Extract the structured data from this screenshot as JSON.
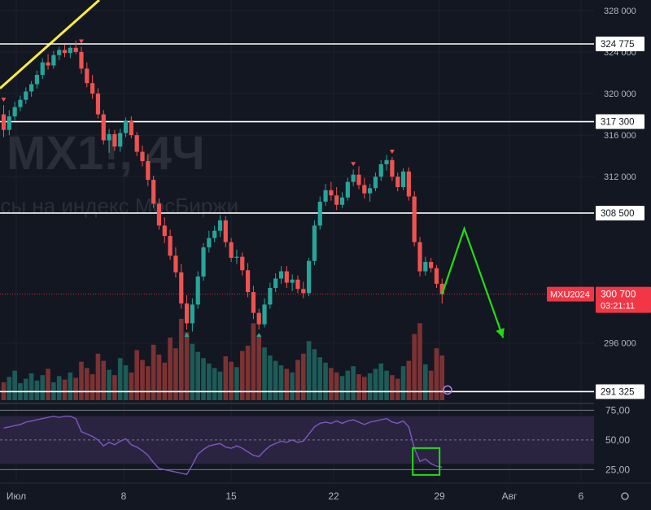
{
  "colors": {
    "background": "#131722",
    "grid": "#1e222d",
    "up": "#26a69a",
    "down": "#ef5350",
    "vol_up": "#1c5b58",
    "vol_down": "#7c3232",
    "level_line": "#ffffff",
    "trend_line": "#ffeb3b",
    "forecast": "#22dd11",
    "rsi": "#7e57c2",
    "rsi_band": "#2a2440",
    "current_tag": "#f23645",
    "axis_text": "#b2b5be",
    "watermark": "#2a2e39"
  },
  "watermark": {
    "symbol_text": "MX1!, 4Ч",
    "description_text": "осы на индекс МосБиржи"
  },
  "chart_data": {
    "type": "candlestick",
    "ylim": [
      290500,
      329000
    ],
    "y_ticks": [
      328000,
      320000,
      316000,
      312000,
      296000
    ],
    "y_tick_labels": [
      "328 000",
      "320 000",
      "316 000",
      "312 000",
      "296 000"
    ],
    "partial_tick": {
      "value": 324000,
      "label": "324 000"
    },
    "x_ticks": [
      "Июл",
      "8",
      "15",
      "22",
      "29",
      "Авг",
      "6"
    ],
    "horizontal_levels": [
      {
        "value": 324775,
        "label": "324 775"
      },
      {
        "value": 317300,
        "label": "317 300"
      },
      {
        "value": 308500,
        "label": "308 500"
      },
      {
        "value": 291325,
        "label": "291 325"
      }
    ],
    "current_price": {
      "symbol": "MXU2024",
      "value": 300700,
      "label": "300 700",
      "countdown": "03:21:11"
    },
    "forecast_path": [
      {
        "bars_ahead": 0,
        "price": 300700
      },
      {
        "bars_ahead": 4,
        "price": 307000
      },
      {
        "bars_ahead": 11,
        "price": 296500
      }
    ],
    "candles": [
      [
        318000,
        318900,
        315800,
        316500
      ],
      [
        316500,
        318400,
        316000,
        317800
      ],
      [
        317800,
        319200,
        317400,
        318700
      ],
      [
        318700,
        319800,
        318300,
        319400
      ],
      [
        319400,
        320600,
        319000,
        320200
      ],
      [
        320200,
        321200,
        319700,
        320900
      ],
      [
        320900,
        322200,
        320500,
        321800
      ],
      [
        321800,
        323400,
        321400,
        323000
      ],
      [
        323000,
        323800,
        322300,
        322700
      ],
      [
        322700,
        324100,
        322400,
        323700
      ],
      [
        323700,
        324500,
        323200,
        324200
      ],
      [
        324200,
        324700,
        323500,
        323900
      ],
      [
        323900,
        324600,
        323400,
        324400
      ],
      [
        324400,
        325100,
        323800,
        324000
      ],
      [
        324000,
        324500,
        321900,
        322400
      ],
      [
        322400,
        323000,
        320600,
        321000
      ],
      [
        321000,
        321800,
        319500,
        320000
      ],
      [
        320000,
        320500,
        317600,
        318000
      ],
      [
        318000,
        318400,
        315100,
        315500
      ],
      [
        315500,
        316600,
        314300,
        316100
      ],
      [
        316100,
        316500,
        314500,
        314900
      ],
      [
        314900,
        316600,
        314400,
        316200
      ],
      [
        316200,
        317700,
        315800,
        317400
      ],
      [
        317400,
        317800,
        315700,
        316000
      ],
      [
        316000,
        316300,
        314000,
        314400
      ],
      [
        314400,
        315000,
        313000,
        313500
      ],
      [
        313500,
        314200,
        311100,
        311700
      ],
      [
        311700,
        312100,
        309000,
        309400
      ],
      [
        309400,
        309900,
        306900,
        307300
      ],
      [
        307300,
        308100,
        305600,
        306300
      ],
      [
        306300,
        306900,
        304000,
        304400
      ],
      [
        304400,
        305200,
        302300,
        302800
      ],
      [
        302800,
        303600,
        299300,
        299800
      ],
      [
        299800,
        300600,
        297300,
        297900
      ],
      [
        297900,
        300300,
        297100,
        299700
      ],
      [
        299700,
        302900,
        299300,
        302400
      ],
      [
        302400,
        305600,
        302000,
        305200
      ],
      [
        305200,
        306800,
        304700,
        306100
      ],
      [
        306100,
        307300,
        305700,
        306800
      ],
      [
        306800,
        308300,
        306200,
        307800
      ],
      [
        307800,
        308200,
        305200,
        305700
      ],
      [
        305700,
        306100,
        303800,
        304200
      ],
      [
        304200,
        305000,
        303600,
        304300
      ],
      [
        304300,
        304700,
        302500,
        303000
      ],
      [
        303000,
        303700,
        300400,
        300900
      ],
      [
        300900,
        301500,
        298300,
        298900
      ],
      [
        298900,
        299300,
        297300,
        297800
      ],
      [
        297800,
        300300,
        297500,
        299700
      ],
      [
        299700,
        301800,
        299300,
        301300
      ],
      [
        301300,
        302700,
        300900,
        302200
      ],
      [
        302200,
        303400,
        301700,
        302900
      ],
      [
        302900,
        303400,
        301300,
        301800
      ],
      [
        301800,
        302600,
        301000,
        302100
      ],
      [
        302100,
        302500,
        300800,
        301200
      ],
      [
        301200,
        301900,
        300300,
        300800
      ],
      [
        300800,
        304200,
        300500,
        303900
      ],
      [
        303900,
        307800,
        303500,
        307300
      ],
      [
        307300,
        310100,
        306900,
        309600
      ],
      [
        309600,
        311300,
        309200,
        310700
      ],
      [
        310700,
        311500,
        309700,
        310200
      ],
      [
        310200,
        311000,
        308800,
        309300
      ],
      [
        309300,
        310500,
        309000,
        310000
      ],
      [
        310000,
        311900,
        309700,
        311500
      ],
      [
        311500,
        312700,
        311100,
        312200
      ],
      [
        312200,
        313000,
        310800,
        311200
      ],
      [
        311200,
        311900,
        309900,
        310400
      ],
      [
        310400,
        311300,
        309600,
        310900
      ],
      [
        310900,
        312400,
        310600,
        312000
      ],
      [
        312000,
        313600,
        311600,
        313200
      ],
      [
        313200,
        314100,
        312600,
        313600
      ],
      [
        313600,
        313900,
        311600,
        312000
      ],
      [
        312000,
        312400,
        310600,
        311000
      ],
      [
        311000,
        312800,
        310700,
        312500
      ],
      [
        312500,
        312900,
        309700,
        310100
      ],
      [
        310100,
        310600,
        305300,
        305700
      ],
      [
        305700,
        306200,
        302400,
        302900
      ],
      [
        302900,
        304300,
        302500,
        303800
      ],
      [
        303800,
        304200,
        302800,
        303200
      ],
      [
        303200,
        303500,
        301300,
        301700
      ],
      [
        301700,
        302200,
        299800,
        300700
      ]
    ],
    "volumes": [
      0.2,
      0.26,
      0.33,
      0.19,
      0.24,
      0.3,
      0.22,
      0.28,
      0.35,
      0.2,
      0.27,
      0.23,
      0.31,
      0.25,
      0.43,
      0.36,
      0.29,
      0.52,
      0.44,
      0.34,
      0.28,
      0.47,
      0.39,
      0.31,
      0.56,
      0.45,
      0.38,
      0.62,
      0.51,
      0.42,
      0.7,
      0.58,
      0.91,
      0.76,
      0.63,
      0.54,
      0.47,
      0.41,
      0.36,
      0.32,
      0.49,
      0.43,
      0.37,
      0.55,
      0.61,
      0.86,
      0.73,
      0.59,
      0.5,
      0.44,
      0.39,
      0.35,
      0.31,
      0.45,
      0.52,
      0.66,
      0.57,
      0.48,
      0.42,
      0.36,
      0.31,
      0.27,
      0.33,
      0.38,
      0.29,
      0.26,
      0.3,
      0.35,
      0.41,
      0.33,
      0.28,
      0.24,
      0.38,
      0.44,
      0.74,
      0.86,
      0.4,
      0.33,
      0.58,
      0.5
    ],
    "markers": [
      {
        "index": 0,
        "kind": "down"
      },
      {
        "index": 14,
        "kind": "down"
      },
      {
        "index": 33,
        "kind": "up"
      },
      {
        "index": 46,
        "kind": "up"
      },
      {
        "index": 63,
        "kind": "down"
      },
      {
        "index": 70,
        "kind": "down"
      }
    ]
  },
  "rsi": {
    "ylim": [
      15,
      78
    ],
    "levels": [
      75,
      50,
      25
    ],
    "tick_labels": [
      "75,00",
      "50,00",
      "25,00"
    ],
    "band": [
      30,
      70
    ],
    "values": [
      60,
      61,
      62,
      63,
      65,
      66,
      67,
      68,
      69,
      70,
      69,
      70,
      70,
      68,
      57,
      55,
      53,
      50,
      45,
      48,
      46,
      49,
      51,
      46,
      44,
      41,
      37,
      31,
      26,
      25,
      24,
      23,
      22,
      21,
      29,
      38,
      42,
      45,
      46,
      47,
      44,
      43,
      45,
      43,
      40,
      37,
      36,
      41,
      45,
      47,
      49,
      48,
      50,
      48,
      49,
      55,
      61,
      64,
      65,
      64,
      66,
      64,
      66,
      67,
      65,
      63,
      65,
      66,
      67,
      68,
      65,
      64,
      66,
      61,
      43,
      32,
      34,
      30,
      28,
      27
    ]
  }
}
